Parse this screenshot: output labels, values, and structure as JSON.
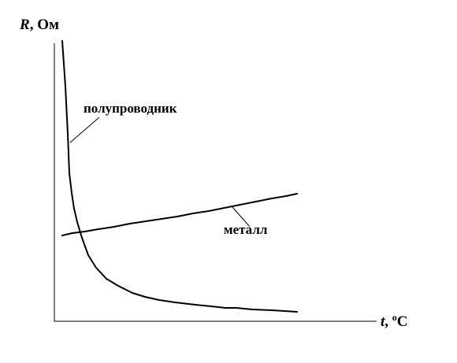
{
  "axes": {
    "y_symbol": "R",
    "y_unit": ", Ом",
    "x_symbol": "t",
    "x_unit_prefix": ", ",
    "x_unit_degree": "o",
    "x_unit_suffix": "C"
  },
  "labels": {
    "semiconductor": "полупроводник",
    "metal": "металл"
  },
  "colors": {
    "line": "#000000",
    "background": "#ffffff"
  }
}
